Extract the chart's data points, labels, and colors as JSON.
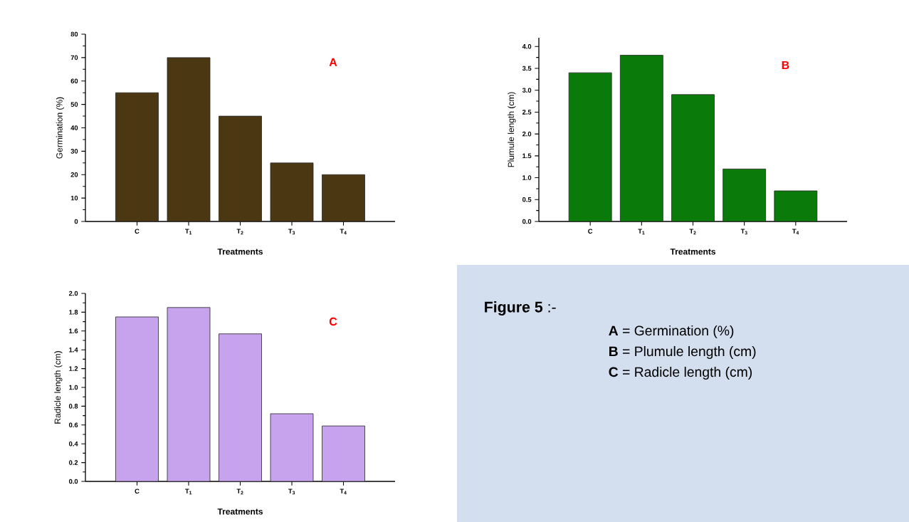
{
  "chart_data": [
    {
      "type": "bar",
      "title": "A",
      "xlabel": "Treatments",
      "ylabel": "Germination (%)",
      "categories": [
        "C",
        "T$_{1}$",
        "T$_{2}$",
        "T$_{3}$",
        "T$_{4}$"
      ],
      "values": [
        55,
        70,
        45,
        25,
        20
      ],
      "color": "#4b3712",
      "ylim": [
        0,
        80
      ],
      "yticks": [
        0,
        10,
        20,
        30,
        40,
        50,
        60,
        70,
        80
      ]
    },
    {
      "type": "bar",
      "title": "B",
      "xlabel": "Treatments",
      "ylabel": "Plumule length (cm)",
      "categories": [
        "C",
        "T$_{1}$",
        "T$_{2}$",
        "T$_{3}$",
        "T$_{4}$"
      ],
      "values": [
        3.4,
        3.8,
        2.9,
        1.2,
        0.7
      ],
      "color": "#0a7a0a",
      "ylim": [
        0,
        4.2
      ],
      "yticks": [
        {
          "value": 0,
          "label": "0.0"
        },
        {
          "value": 0.5,
          "label": "0.5"
        },
        {
          "value": 1,
          "label": "1.0"
        },
        {
          "value": 1.5,
          "label": "1.5"
        },
        {
          "value": 2,
          "label": "2.0"
        },
        {
          "value": 2.5,
          "label": "2.5"
        },
        {
          "value": 3,
          "label": "3.0"
        },
        {
          "value": 3.5,
          "label": "3.5"
        },
        {
          "value": 4,
          "label": "4.0"
        }
      ]
    },
    {
      "type": "bar",
      "title": "C",
      "xlabel": "Treatments",
      "ylabel": "Radicle length (cm)",
      "categories": [
        "C",
        "T$_{1}$",
        "T$_{2}$",
        "T$_{3}$",
        "T$_{4}$"
      ],
      "values": [
        1.75,
        1.85,
        1.57,
        0.72,
        0.59
      ],
      "color": "#c6a3ec",
      "ylim": [
        0,
        2
      ],
      "yticks": [
        {
          "value": 0,
          "label": "0.0"
        },
        {
          "value": 0.2,
          "label": "0.2"
        },
        {
          "value": 0.4,
          "label": "0.4"
        },
        {
          "value": 0.6,
          "label": "0.6"
        },
        {
          "value": 0.8,
          "label": "0.8"
        },
        {
          "value": 1,
          "label": "1.0"
        },
        {
          "value": 1.2,
          "label": "1.2"
        },
        {
          "value": 1.4,
          "label": "1.4"
        },
        {
          "value": 1.6,
          "label": "1.6"
        },
        {
          "value": 1.8,
          "label": "1.8"
        },
        {
          "value": 2,
          "label": "2.0"
        }
      ]
    },
    {
      "type": "other",
      "title": "**Figure 5** :-",
      "annotations": [
        "**A** = Germination (%)",
        "**B** = Plumule length (cm)",
        "**C** = Radicle length (cm)"
      ]
    }
  ]
}
